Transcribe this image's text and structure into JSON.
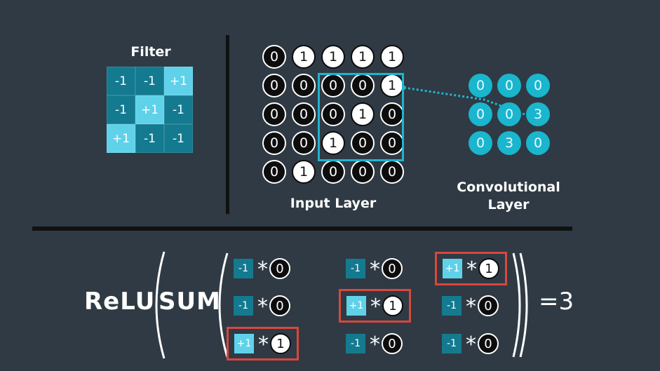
{
  "filter": {
    "title": "Filter",
    "cells": [
      [
        "-1",
        "-1",
        "+1"
      ],
      [
        "-1",
        "+1",
        "-1"
      ],
      [
        "+1",
        "-1",
        "-1"
      ]
    ]
  },
  "input_layer": {
    "label": "Input Layer",
    "cells": [
      [
        "0",
        "1",
        "1",
        "1",
        "1"
      ],
      [
        "0",
        "0",
        "0",
        "0",
        "1"
      ],
      [
        "0",
        "0",
        "0",
        "1",
        "0"
      ],
      [
        "0",
        "0",
        "1",
        "0",
        "0"
      ],
      [
        "0",
        "1",
        "0",
        "0",
        "0"
      ]
    ]
  },
  "conv_layer": {
    "label_line1": "Convolutional",
    "label_line2": "Layer",
    "cells": [
      [
        "0",
        "0",
        "0"
      ],
      [
        "0",
        "0",
        "3"
      ],
      [
        "0",
        "3",
        "0"
      ]
    ]
  },
  "equation": {
    "relu": "ReLU",
    "sum": "SUM",
    "operator": "*",
    "result": "=3",
    "terms": [
      {
        "w": "-1",
        "x": "0",
        "hl": false
      },
      {
        "w": "-1",
        "x": "0",
        "hl": false
      },
      {
        "w": "+1",
        "x": "1",
        "hl": true
      },
      {
        "w": "-1",
        "x": "0",
        "hl": false
      },
      {
        "w": "+1",
        "x": "1",
        "hl": true
      },
      {
        "w": "-1",
        "x": "0",
        "hl": false
      },
      {
        "w": "+1",
        "x": "1",
        "hl": true
      },
      {
        "w": "-1",
        "x": "0",
        "hl": false
      },
      {
        "w": "-1",
        "x": "0",
        "hl": false
      }
    ]
  },
  "colors": {
    "background": "#2f3a44",
    "filter_negative": "#147a90",
    "filter_positive": "#5fd2ea",
    "highlight_window": "#1fb4cf",
    "highlight_term": "#d9473d"
  }
}
